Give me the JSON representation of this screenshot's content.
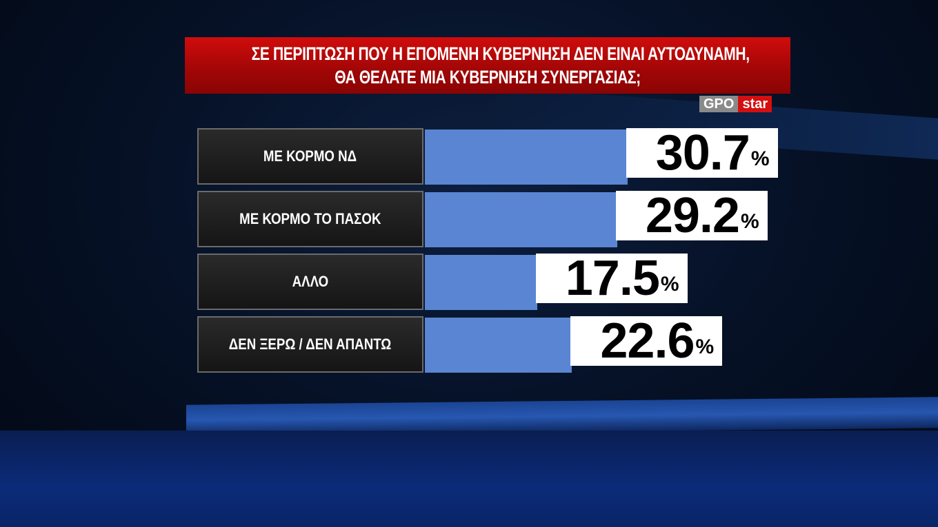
{
  "chart_data": {
    "type": "bar",
    "orientation": "horizontal",
    "title": "ΣΕ ΠΕΡΙΠΤΩΣΗ ΠΟΥ Η ΕΠΟΜΕΝΗ ΚΥΒΕΡΝΗΣΗ ΔΕΝ ΕΙΝΑΙ ΑΥΤΟΔΥΝΑΜΗ, ΘΑ ΘΕΛΑΤΕ ΜΙΑ ΚΥΒΕΡΝΗΣΗ ΣΥΝΕΡΓΑΣΙΑΣ;",
    "title_lines": [
      "ΣΕ ΠΕΡΙΠΤΩΣΗ ΠΟΥ Η ΕΠΟΜΕΝΗ ΚΥΒΕΡΝΗΣΗ ΔΕΝ ΕΙΝΑΙ ΑΥΤΟΔΥΝΑΜΗ,",
      "ΘΑ ΘΕΛΑΤΕ ΜΙΑ ΚΥΒΕΡΝΗΣΗ ΣΥΝΕΡΓΑΣΙΑΣ;"
    ],
    "categories": [
      "ΜΕ ΚΟΡΜΟ ΝΔ",
      "ΜΕ ΚΟΡΜΟ ΤΟ ΠΑΣΟΚ",
      "ΑΛΛΟ",
      "ΔΕΝ ΞΕΡΩ / ΔΕΝ ΑΠΑΝΤΩ"
    ],
    "values": [
      30.7,
      29.2,
      17.5,
      22.6
    ],
    "value_labels": [
      "30.7",
      "29.2",
      "17.5",
      "22.6"
    ],
    "unit": "%",
    "bar_color": "#5a85d2",
    "title_color": "#c00a0a"
  },
  "branding": {
    "gpo": "GPO",
    "star": "star"
  }
}
